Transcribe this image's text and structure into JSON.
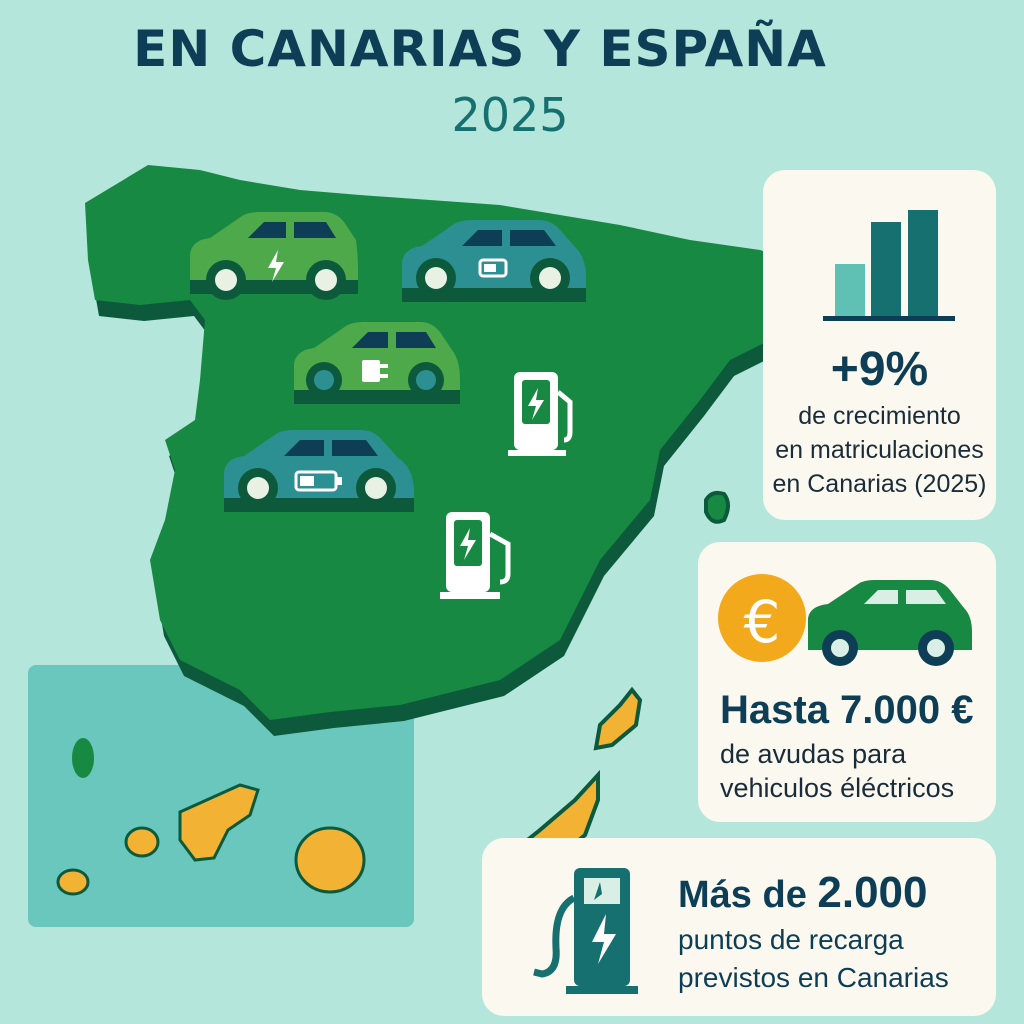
{
  "header": {
    "title": "EN CANARIAS Y ESPAÑA",
    "year": "2025"
  },
  "stats": {
    "growth": {
      "value": "+9%",
      "lines": [
        "de crecimiento",
        "en matriculaciones",
        "en Canarias (2025)"
      ]
    },
    "subsidy": {
      "value": "Hasta 7.000 €",
      "lines": [
        "de avudas para",
        "vehiculos éléctricos"
      ],
      "icon_symbol": "€"
    },
    "charging": {
      "prefix": "Más de",
      "value": "2.000",
      "lines": [
        "puntos de recarga",
        "previstos en Canarias"
      ]
    }
  },
  "icons": [
    "bar-chart-icon",
    "euro-coin-icon",
    "car-icon",
    "charging-station-icon",
    "lightning-icon",
    "plug-icon",
    "battery-icon"
  ],
  "colors": {
    "background": "#b5e6dc",
    "map_green": "#178943",
    "map_shadow": "#0c5a3b",
    "islands": "#f2b233",
    "title": "#0e3d56",
    "teal": "#16706f",
    "card": "#fbf9ef"
  }
}
